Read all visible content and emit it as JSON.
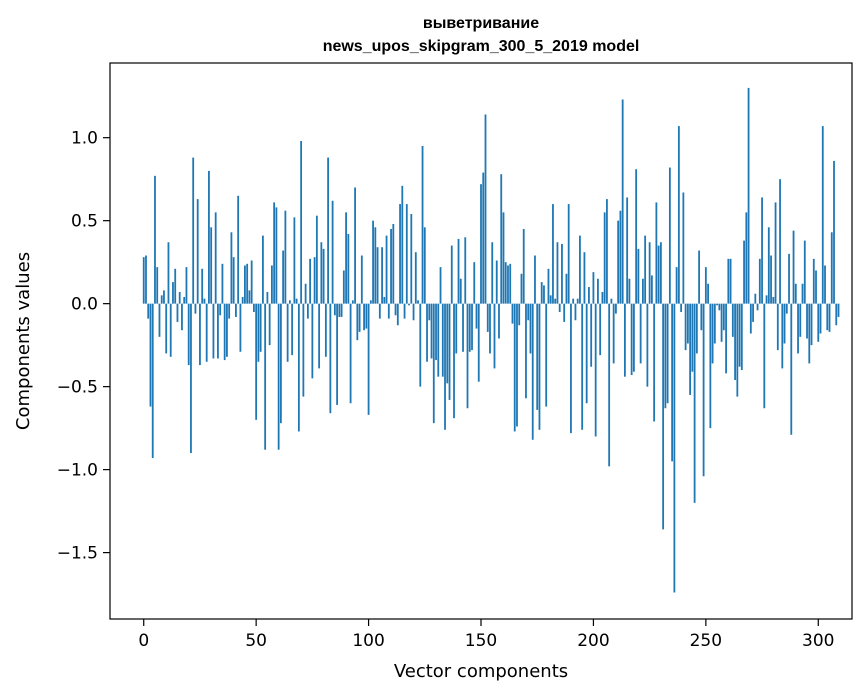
{
  "chart_data": {
    "type": "bar",
    "title_line1": "выветривание",
    "title_line2": "news_upos_skipgram_300_5_2019 model",
    "xlabel": "Vector components",
    "ylabel": "Components values",
    "xlim": [
      -15,
      315
    ],
    "ylim": [
      -1.9,
      1.45
    ],
    "x_ticks": [
      0,
      50,
      100,
      150,
      200,
      250,
      300
    ],
    "y_ticks": [
      -1.5,
      -1.0,
      -0.5,
      0.0,
      0.5,
      1.0
    ],
    "x_tick_labels": [
      "0",
      "50",
      "100",
      "150",
      "200",
      "250",
      "300"
    ],
    "y_tick_labels": [
      "−1.5",
      "−1.0",
      "−0.5",
      "0.0",
      "0.5",
      "1.0"
    ],
    "bar_color": "#1f77b4",
    "values": [
      0.28,
      0.29,
      -0.09,
      -0.62,
      -0.93,
      0.77,
      0.22,
      -0.2,
      0.05,
      0.08,
      -0.3,
      0.37,
      -0.32,
      0.13,
      0.21,
      -0.11,
      0.07,
      -0.16,
      0.04,
      0.22,
      -0.37,
      -0.9,
      0.88,
      -0.06,
      0.63,
      -0.37,
      0.21,
      0.03,
      -0.35,
      0.8,
      0.46,
      -0.33,
      0.55,
      -0.33,
      -0.07,
      0.24,
      -0.34,
      -0.32,
      -0.09,
      0.43,
      0.28,
      -0.08,
      0.65,
      -0.29,
      0.04,
      0.23,
      0.24,
      0.08,
      0.26,
      -0.05,
      -0.7,
      -0.35,
      -0.29,
      0.41,
      -0.88,
      0.07,
      -0.25,
      0.23,
      0.61,
      0.58,
      -0.88,
      -0.72,
      0.32,
      0.56,
      -0.35,
      0.02,
      -0.31,
      0.52,
      0.03,
      -0.77,
      0.98,
      -0.56,
      0.12,
      -0.09,
      0.27,
      -0.45,
      0.28,
      0.53,
      -0.39,
      0.37,
      0.33,
      -0.32,
      0.88,
      -0.66,
      0.62,
      -0.07,
      -0.61,
      -0.08,
      -0.08,
      0.2,
      0.55,
      0.42,
      -0.6,
      0.02,
      0.7,
      -0.22,
      -0.17,
      0.29,
      -0.16,
      -0.15,
      -0.67,
      0.02,
      0.5,
      0.46,
      0.34,
      -0.09,
      0.34,
      0.04,
      0.41,
      -0.09,
      0.45,
      0.48,
      -0.07,
      -0.13,
      0.6,
      0.71,
      -0.09,
      0.6,
      -0.01,
      0.54,
      -0.1,
      0.31,
      0.02,
      -0.5,
      0.95,
      0.46,
      -0.35,
      -0.1,
      -0.33,
      -0.72,
      -0.34,
      -0.44,
      0.22,
      -0.44,
      -0.76,
      -0.48,
      -0.58,
      0.35,
      -0.69,
      -0.3,
      0.39,
      0.15,
      -0.29,
      0.4,
      -0.63,
      -0.29,
      -0.28,
      0.25,
      -0.15,
      -0.47,
      0.72,
      0.79,
      1.14,
      -0.17,
      -0.3,
      0.37,
      -0.39,
      0.26,
      -0.21,
      0.78,
      0.55,
      0.25,
      0.23,
      0.24,
      -0.12,
      -0.77,
      -0.74,
      -0.13,
      0.18,
      0.45,
      -0.57,
      -0.1,
      -0.3,
      -0.82,
      0.29,
      -0.64,
      -0.76,
      0.13,
      0.11,
      -0.62,
      0.21,
      0.05,
      0.6,
      0.03,
      0.37,
      -0.05,
      0.36,
      -0.11,
      0.18,
      0.6,
      -0.78,
      0.03,
      -0.1,
      0.03,
      0.41,
      -0.76,
      0.31,
      -0.6,
      0.1,
      -0.38,
      0.19,
      -0.8,
      0.15,
      -0.31,
      0.07,
      0.55,
      0.63,
      -0.98,
      0.03,
      -0.36,
      -0.06,
      0.5,
      0.56,
      1.23,
      -0.44,
      0.64,
      0.15,
      -0.43,
      -0.41,
      0.81,
      0.33,
      -0.36,
      0.15,
      0.41,
      -0.5,
      0.37,
      0.17,
      -0.71,
      0.61,
      0.35,
      0.37,
      -1.36,
      -0.63,
      -0.6,
      0.82,
      -0.95,
      -1.74,
      0.22,
      1.07,
      -0.05,
      0.67,
      -0.28,
      -0.24,
      -0.55,
      -0.41,
      -1.2,
      -0.3,
      0.32,
      -0.16,
      -1.04,
      0.22,
      0.12,
      -0.75,
      -0.36,
      -0.24,
      -0.01,
      -0.04,
      -0.23,
      -0.16,
      -0.42,
      0.27,
      0.27,
      -0.2,
      -0.46,
      -0.56,
      -0.38,
      -0.4,
      0.38,
      0.55,
      1.3,
      -0.18,
      -0.11,
      0.06,
      -0.04,
      0.27,
      0.64,
      -0.63,
      0.05,
      0.46,
      0.29,
      0.04,
      0.61,
      -0.28,
      0.75,
      -0.39,
      -0.24,
      -0.06,
      0.3,
      -0.79,
      0.44,
      0.12,
      -0.3,
      -0.2,
      0.12,
      0.38,
      -0.21,
      -0.36,
      -0.25,
      0.27,
      0.2,
      -0.23,
      -0.18,
      1.07,
      0.23,
      -0.16,
      -0.17,
      0.43,
      0.86,
      -0.13,
      -0.08
    ]
  }
}
